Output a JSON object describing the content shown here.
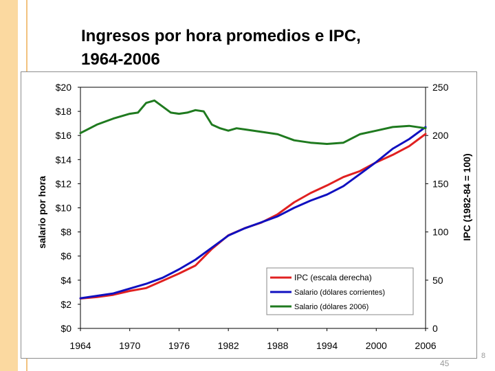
{
  "slide": {
    "title_line1": "Ingresos por hora promedios e IPC,",
    "title_line2": "1964-2006",
    "page_number": "45",
    "corner_mark": "8"
  },
  "colors": {
    "band": "#fbd9a0",
    "ipc": "#e02020",
    "nominal": "#1010c0",
    "real": "#1f7a1f",
    "axis": "#000000"
  },
  "chart_data": {
    "type": "line",
    "title": "Ingresos por hora promedios e IPC, 1964-2006",
    "xlabel": "",
    "ylabel": "salario por hora",
    "y2label": "IPC  (1982-84 = 100)",
    "xlim": [
      1964,
      2006
    ],
    "ylim": [
      0,
      20
    ],
    "y2lim": [
      0,
      250
    ],
    "x_ticks": [
      "1964",
      "1970",
      "1976",
      "1982",
      "1988",
      "1994",
      "2000",
      "2006"
    ],
    "y_ticks": [
      "$0",
      "$2",
      "$4",
      "$6",
      "$8",
      "$10",
      "$12",
      "$14",
      "$16",
      "$18",
      "$20"
    ],
    "y2_ticks": [
      "0",
      "50",
      "100",
      "150",
      "200",
      "250"
    ],
    "legend_position": "bottom-center",
    "series": [
      {
        "name": "IPC  (escala derecha)",
        "axis": "right",
        "color": "#e02020",
        "x": [
          1964,
          1966,
          1968,
          1970,
          1972,
          1974,
          1976,
          1978,
          1980,
          1982,
          1984,
          1986,
          1988,
          1990,
          1992,
          1994,
          1996,
          1998,
          2000,
          2002,
          2004,
          2006
        ],
        "values": [
          31,
          32.5,
          34.8,
          38.8,
          41.8,
          49.3,
          56.9,
          65.2,
          82.4,
          96.5,
          103.9,
          109.6,
          118.3,
          130.7,
          140.3,
          148.2,
          156.9,
          163.0,
          172.2,
          179.9,
          188.9,
          201.6
        ]
      },
      {
        "name": "Salario (dólares corrientes)",
        "axis": "left",
        "color": "#1010c0",
        "x": [
          1964,
          1966,
          1968,
          1970,
          1972,
          1974,
          1976,
          1978,
          1980,
          1982,
          1984,
          1986,
          1988,
          1990,
          1992,
          1994,
          1996,
          1998,
          2000,
          2002,
          2004,
          2006
        ],
        "values": [
          2.5,
          2.7,
          2.9,
          3.3,
          3.7,
          4.2,
          4.9,
          5.7,
          6.7,
          7.7,
          8.3,
          8.8,
          9.3,
          10.0,
          10.6,
          11.1,
          11.8,
          12.8,
          13.8,
          14.9,
          15.7,
          16.7
        ]
      },
      {
        "name": "Salario (dólares 2006)",
        "axis": "left",
        "color": "#1f7a1f",
        "x": [
          1964,
          1966,
          1968,
          1970,
          1971,
          1972,
          1973,
          1974,
          1975,
          1976,
          1977,
          1978,
          1979,
          1980,
          1981,
          1982,
          1983,
          1984,
          1986,
          1988,
          1990,
          1992,
          1994,
          1996,
          1998,
          2000,
          2002,
          2004,
          2006
        ],
        "values": [
          16.2,
          16.9,
          17.4,
          17.8,
          17.9,
          18.7,
          18.9,
          18.4,
          17.9,
          17.8,
          17.9,
          18.1,
          18.0,
          16.9,
          16.6,
          16.4,
          16.6,
          16.5,
          16.3,
          16.1,
          15.6,
          15.4,
          15.3,
          15.4,
          16.1,
          16.4,
          16.7,
          16.8,
          16.6
        ]
      }
    ]
  }
}
